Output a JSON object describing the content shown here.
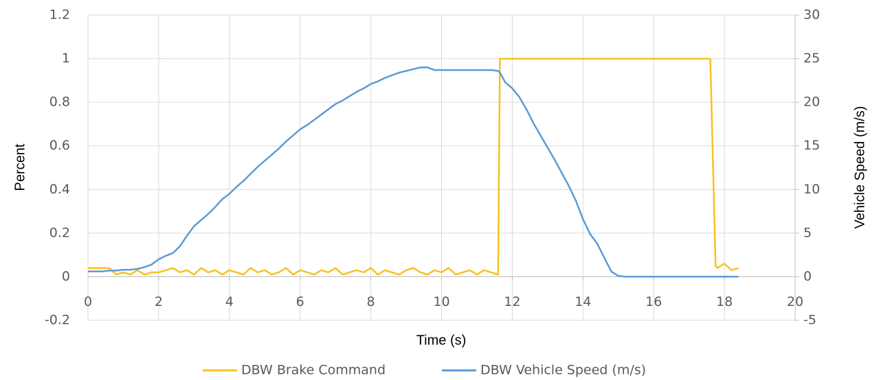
{
  "chart_data": {
    "type": "line",
    "xlabel": "Time (s)",
    "ylabel": "Percent",
    "y2label": "Vehicle Speed (m/s)",
    "x": [
      0,
      0.2,
      0.4,
      0.6,
      0.8,
      1,
      1.2,
      1.4,
      1.6,
      1.8,
      2,
      2.2,
      2.4,
      2.6,
      2.8,
      3,
      3.2,
      3.4,
      3.6,
      3.8,
      4,
      4.2,
      4.4,
      4.6,
      4.8,
      5,
      5.2,
      5.4,
      5.6,
      5.8,
      6,
      6.2,
      6.4,
      6.6,
      6.8,
      7,
      7.2,
      7.4,
      7.6,
      7.8,
      8,
      8.2,
      8.4,
      8.6,
      8.8,
      9,
      9.2,
      9.4,
      9.6,
      9.8,
      10,
      10.2,
      10.4,
      10.6,
      10.8,
      11,
      11.2,
      11.4,
      11.6,
      11.65,
      11.8,
      12,
      12.2,
      12.4,
      12.6,
      12.8,
      13,
      13.2,
      13.4,
      13.6,
      13.8,
      14,
      14.2,
      14.4,
      14.6,
      14.8,
      15,
      15.2,
      15.4,
      15.6,
      15.8,
      16,
      16.2,
      16.4,
      16.6,
      16.8,
      17,
      17.2,
      17.4,
      17.6,
      17.75,
      17.8,
      18,
      18.2,
      18.4
    ],
    "series": [
      {
        "name": "DBW Brake Command",
        "color": "#f7c21f",
        "axis": "y",
        "values": [
          0.04,
          0.04,
          0.04,
          0.04,
          0.01,
          0.02,
          0.01,
          0.03,
          0.01,
          0.02,
          0.02,
          0.03,
          0.04,
          0.02,
          0.03,
          0.01,
          0.04,
          0.02,
          0.03,
          0.01,
          0.03,
          0.02,
          0.01,
          0.04,
          0.02,
          0.03,
          0.01,
          0.02,
          0.04,
          0.01,
          0.03,
          0.02,
          0.01,
          0.03,
          0.02,
          0.04,
          0.01,
          0.02,
          0.03,
          0.02,
          0.04,
          0.01,
          0.03,
          0.02,
          0.01,
          0.03,
          0.04,
          0.02,
          0.01,
          0.03,
          0.02,
          0.04,
          0.01,
          0.02,
          0.03,
          0.01,
          0.03,
          0.02,
          0.01,
          1,
          1,
          1,
          1,
          1,
          1,
          1,
          1,
          1,
          1,
          1,
          1,
          1,
          1,
          1,
          1,
          1,
          1,
          1,
          1,
          1,
          1,
          1,
          1,
          1,
          1,
          1,
          1,
          1,
          1,
          1,
          0.05,
          0.04,
          0.06,
          0.03,
          0.04
        ]
      },
      {
        "name": "DBW Vehicle Speed (m/s)",
        "color": "#5b9bd5",
        "axis": "y2",
        "values": [
          0.6,
          0.6,
          0.6,
          0.7,
          0.7,
          0.8,
          0.8,
          0.9,
          1.1,
          1.4,
          2,
          2.4,
          2.7,
          3.5,
          4.7,
          5.8,
          6.5,
          7.2,
          8,
          8.9,
          9.5,
          10.3,
          11,
          11.8,
          12.6,
          13.3,
          14,
          14.7,
          15.5,
          16.2,
          16.9,
          17.4,
          18,
          18.6,
          19.2,
          19.8,
          20.2,
          20.7,
          21.2,
          21.6,
          22.1,
          22.4,
          22.8,
          23.1,
          23.4,
          23.6,
          23.8,
          24,
          24,
          23.7,
          23.7,
          23.7,
          23.7,
          23.7,
          23.7,
          23.7,
          23.7,
          23.7,
          23.6,
          23.4,
          22.3,
          21.6,
          20.6,
          19.2,
          17.6,
          16.2,
          14.8,
          13.4,
          11.9,
          10.4,
          8.7,
          6.6,
          4.9,
          3.8,
          2.2,
          0.6,
          0.1,
          0,
          0,
          0,
          0,
          0,
          0,
          0,
          0,
          0,
          0,
          0,
          0,
          0,
          0,
          0,
          0,
          0,
          0
        ]
      }
    ],
    "xlim": [
      0,
      20
    ],
    "xticks": [
      0,
      2,
      4,
      6,
      8,
      10,
      12,
      14,
      16,
      18,
      20
    ],
    "ylim": [
      -0.2,
      1.2
    ],
    "yticks": [
      -0.2,
      0,
      0.2,
      0.4,
      0.6,
      0.8,
      1,
      1.2
    ],
    "y2lim": [
      -5,
      30
    ],
    "y2ticks": [
      -5,
      0,
      5,
      10,
      15,
      20,
      25,
      30
    ],
    "grid": true,
    "legend": "bottom"
  }
}
